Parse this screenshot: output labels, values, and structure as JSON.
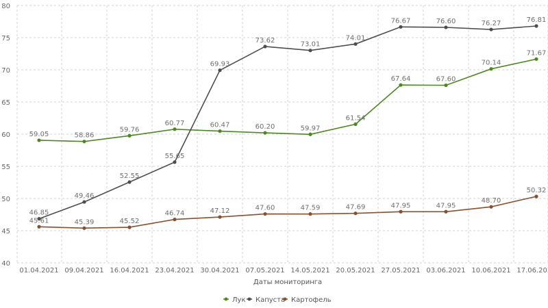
{
  "chart_data": {
    "type": "line",
    "categories": [
      "01.04.2021",
      "09.04.2021",
      "16.04.2021",
      "23.04.2021",
      "30.04.2021",
      "07.05.2021",
      "14.05.2021",
      "20.05.2021",
      "27.05.2021",
      "03.06.2021",
      "10.06.2021",
      "17.06.2021"
    ],
    "yticks": [
      "40",
      "45",
      "50",
      "55",
      "60",
      "65",
      "70",
      "75",
      "80"
    ],
    "ylim": [
      40,
      80
    ],
    "xlabel": "Даты мониторинга",
    "ylabel": "",
    "grid": true,
    "legend_position": "bottom-center",
    "series": [
      {
        "name": "Лук",
        "color": "#4a8a1c",
        "values": [
          59.05,
          58.86,
          59.76,
          60.77,
          60.47,
          60.2,
          59.97,
          61.54,
          67.64,
          67.6,
          70.14,
          71.67
        ],
        "labels": [
          "59.05",
          "58.86",
          "59.76",
          "60.77",
          "60.47",
          "60.20",
          "59.97",
          "61.54",
          "67.64",
          "67.60",
          "70.14",
          "71.67"
        ]
      },
      {
        "name": "Капуста",
        "color": "#4d4d4d",
        "values": [
          46.85,
          49.46,
          52.55,
          55.65,
          69.93,
          73.62,
          73.01,
          74.01,
          76.67,
          76.6,
          76.27,
          76.81
        ],
        "labels": [
          "46.85",
          "49.46",
          "52.55",
          "55.65",
          "69.93",
          "73.62",
          "73.01",
          "74.01",
          "76.67",
          "76.60",
          "76.27",
          "76.81"
        ]
      },
      {
        "name": "Картофель",
        "color": "#8b4f2c",
        "values": [
          45.61,
          45.39,
          45.52,
          46.74,
          47.12,
          47.6,
          47.59,
          47.69,
          47.95,
          47.95,
          48.7,
          50.32
        ],
        "labels": [
          "45.61",
          "45.39",
          "45.52",
          "46.74",
          "47.12",
          "47.60",
          "47.59",
          "47.69",
          "47.95",
          "47.95",
          "48.70",
          "50.32"
        ]
      }
    ]
  }
}
